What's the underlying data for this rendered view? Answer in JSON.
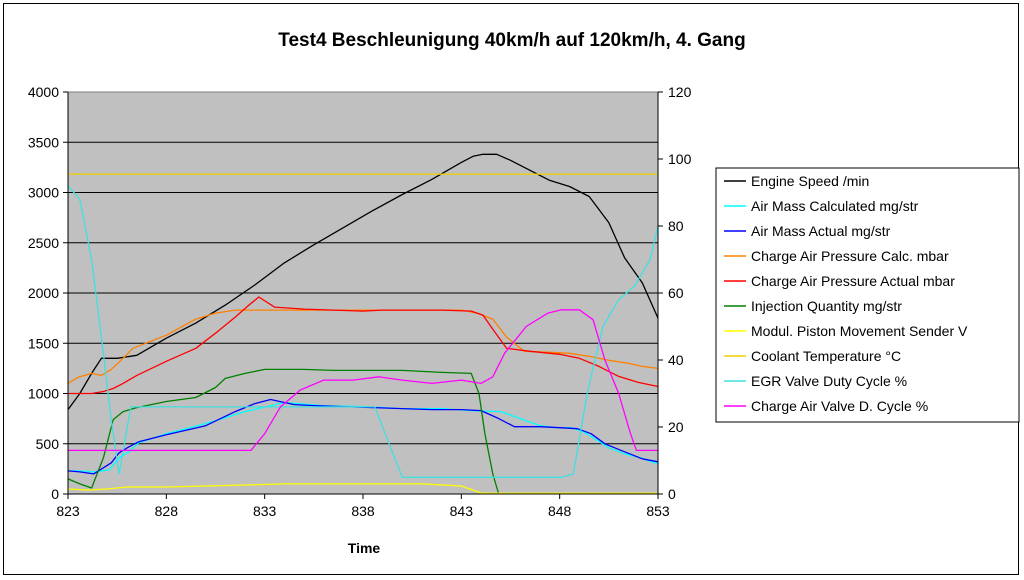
{
  "chart_data": {
    "type": "line",
    "title": "Test4 Beschleunigung 40km/h auf 120km/h, 4. Gang",
    "xlabel": "Time",
    "ylabel": "",
    "y2label": "",
    "xlim": [
      823,
      853
    ],
    "ylim": [
      0,
      4000
    ],
    "y2lim": [
      0,
      120
    ],
    "x_ticks": [
      "823",
      "828",
      "833",
      "838",
      "843",
      "848",
      "853"
    ],
    "y_ticks": [
      "0",
      "500",
      "1000",
      "1500",
      "2000",
      "2500",
      "3000",
      "3500",
      "4000"
    ],
    "y2_ticks": [
      "0",
      "20",
      "40",
      "60",
      "80",
      "100",
      "120"
    ],
    "grid": true,
    "plot_background": "#c0c0c0",
    "legend_position": "right",
    "series": [
      {
        "name": "Engine Speed /min",
        "color": "#000000",
        "axis": "left",
        "x": [
          823,
          823.6,
          824.2,
          824.7,
          825.5,
          826.5,
          828,
          829.5,
          831,
          832.5,
          834,
          835.5,
          837,
          838.5,
          840,
          841.5,
          843,
          843.6,
          844.1,
          844.8,
          845.5,
          846.5,
          847.5,
          848.5,
          849.5,
          850.5,
          851.3,
          852.2,
          853
        ],
        "y": [
          840,
          1000,
          1200,
          1350,
          1350,
          1380,
          1550,
          1700,
          1880,
          2080,
          2300,
          2480,
          2650,
          2820,
          2980,
          3130,
          3300,
          3360,
          3380,
          3380,
          3320,
          3220,
          3120,
          3060,
          2960,
          2700,
          2350,
          2100,
          1750
        ]
      },
      {
        "name": "Air Mass Calculated  mg/str",
        "color": "#00ffff",
        "axis": "left",
        "x": [
          823,
          823.5,
          824.3,
          825.1,
          825.6,
          826.1,
          826.6,
          828,
          830,
          832,
          834,
          836,
          838,
          840,
          842,
          843.5,
          845,
          846,
          847,
          847.8,
          848.6,
          849.2,
          849.7,
          850.5,
          851.3,
          852.1,
          853
        ],
        "y": [
          230,
          230,
          220,
          240,
          360,
          420,
          510,
          600,
          700,
          820,
          910,
          880,
          870,
          850,
          850,
          830,
          820,
          750,
          680,
          660,
          660,
          620,
          560,
          460,
          400,
          360,
          300
        ]
      },
      {
        "name": "Air Mass Actual  mg/str",
        "color": "#0000ff",
        "axis": "left",
        "x": [
          823,
          823.6,
          824.3,
          825.2,
          825.6,
          826.1,
          826.6,
          828,
          830,
          831.5,
          832.5,
          833.3,
          834.5,
          835.5,
          837,
          838.5,
          840,
          841.5,
          843,
          844,
          844.8,
          845.7,
          847,
          848,
          848.9,
          849.6,
          850.3,
          851.3,
          852.2,
          853
        ],
        "y": [
          230,
          220,
          200,
          310,
          410,
          470,
          520,
          590,
          680,
          820,
          900,
          940,
          890,
          880,
          870,
          860,
          850,
          840,
          840,
          830,
          760,
          670,
          670,
          660,
          650,
          600,
          500,
          420,
          350,
          320
        ]
      },
      {
        "name": "Charge Air Pressure Calc.  mbar",
        "color": "#ff8000",
        "axis": "left",
        "x": [
          823,
          823.5,
          824.2,
          824.7,
          825.2,
          825.7,
          826.3,
          828,
          829.5,
          830.5,
          831.5,
          832.5,
          833.5,
          835,
          837,
          838.5,
          840,
          841.5,
          843,
          843.8,
          844.6,
          845.3,
          846.2,
          847.5,
          848.5,
          849.5,
          850.5,
          851.5,
          852.2,
          853
        ],
        "y": [
          1100,
          1160,
          1200,
          1180,
          1240,
          1330,
          1450,
          1580,
          1740,
          1800,
          1830,
          1830,
          1830,
          1830,
          1830,
          1830,
          1830,
          1830,
          1830,
          1800,
          1740,
          1560,
          1420,
          1410,
          1400,
          1370,
          1330,
          1300,
          1270,
          1250
        ]
      },
      {
        "name": "Charge Air Pressure Actual  mbar",
        "color": "#ff0000",
        "axis": "left",
        "x": [
          823,
          823.6,
          824.2,
          824.8,
          825.3,
          825.8,
          826.5,
          828,
          829.5,
          830.5,
          831.5,
          832.2,
          832.7,
          833.5,
          835,
          836.5,
          838,
          839,
          840.5,
          842,
          843.5,
          844.1,
          844.6,
          845.3,
          846.5,
          848,
          849,
          850,
          851,
          852,
          853
        ],
        "y": [
          1000,
          1000,
          1000,
          1020,
          1050,
          1100,
          1180,
          1320,
          1450,
          1600,
          1760,
          1880,
          1960,
          1860,
          1840,
          1830,
          1820,
          1830,
          1830,
          1830,
          1820,
          1780,
          1640,
          1450,
          1420,
          1390,
          1350,
          1270,
          1170,
          1110,
          1070
        ]
      },
      {
        "name": "Injection Quantity  mg/str",
        "color": "#008000",
        "axis": "left",
        "x": [
          823,
          823.6,
          824.2,
          824.8,
          825.3,
          825.8,
          826.5,
          828,
          829.5,
          830.5,
          831,
          832,
          833,
          834,
          835,
          836.5,
          838,
          840,
          842,
          843.5,
          843.9,
          844.2,
          844.6,
          844.9
        ],
        "y": [
          150,
          100,
          60,
          360,
          740,
          820,
          860,
          920,
          960,
          1060,
          1150,
          1200,
          1240,
          1240,
          1240,
          1230,
          1230,
          1230,
          1210,
          1200,
          1000,
          600,
          200,
          0
        ]
      },
      {
        "name": "Modul. Piston Movement Sender  V",
        "color": "#ffff00",
        "axis": "right",
        "x": [
          823,
          824,
          825,
          826,
          828,
          830,
          832,
          834,
          836,
          838,
          840,
          841,
          843,
          844,
          844.5,
          848,
          853
        ],
        "y": [
          1.5,
          1.2,
          1.5,
          2.1,
          2.1,
          2.4,
          2.7,
          3.0,
          3.0,
          3.0,
          3.0,
          3.0,
          2.4,
          0.3,
          0.2,
          0.2,
          0.2
        ]
      },
      {
        "name": "Coolant Temperature °C",
        "color": "#f0d000",
        "axis": "right",
        "x": [
          823,
          853
        ],
        "y": [
          95.5,
          95.5
        ]
      },
      {
        "name": "EGR Valve Duty Cycle  %",
        "color": "#40e0e0",
        "axis": "right",
        "x": [
          823,
          823.6,
          824.2,
          824.8,
          825.2,
          825.6,
          826.2,
          827,
          829,
          831,
          833,
          835,
          837,
          838,
          838.6,
          840,
          842,
          843.5,
          844.5,
          845.5,
          846.5,
          847.3,
          848.1,
          848.7,
          849.4,
          850.2,
          851,
          851.8,
          852.6,
          853
        ],
        "y": [
          92,
          88,
          70,
          42,
          22,
          6,
          26,
          26,
          26,
          26,
          26,
          26,
          26,
          26,
          26,
          5,
          5,
          5,
          5,
          5,
          5,
          5,
          5,
          6,
          30,
          50,
          58,
          62,
          70,
          80
        ]
      },
      {
        "name": "Charge Air Valve D. Cycle  %",
        "color": "#ff00ff",
        "axis": "right",
        "x": [
          823,
          824,
          826,
          828,
          830,
          831,
          831.3,
          831.7,
          832.3,
          833,
          833.8,
          834.8,
          836,
          837.5,
          838.8,
          840,
          841.5,
          843,
          844,
          844.6,
          845.2,
          846.3,
          847.4,
          848.1,
          849,
          849.7,
          850.3,
          851,
          851.6,
          851.9,
          853
        ],
        "y": [
          13,
          13,
          13,
          13,
          13,
          13,
          13,
          13,
          13,
          18,
          26,
          31,
          34,
          34,
          35,
          34,
          33,
          34,
          33,
          35,
          42,
          50,
          54,
          55,
          55,
          52,
          40,
          30,
          18,
          13,
          13
        ]
      }
    ]
  }
}
